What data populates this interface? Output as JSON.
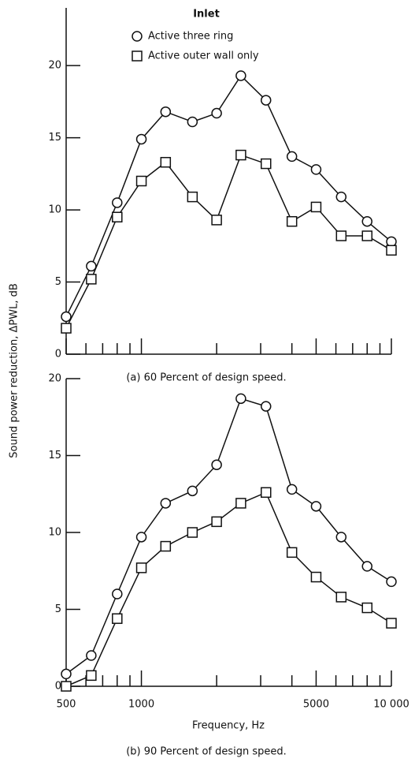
{
  "chart_data": [
    {
      "type": "line",
      "title": "(a) 60 Percent of design speed.",
      "y_label": "Sound power reduction, ΔPWL, dB",
      "legend_title": "Inlet",
      "legend": "top-center",
      "x": [
        500,
        630,
        800,
        1000,
        1250,
        1600,
        2000,
        2500,
        3150,
        4000,
        5000,
        6300,
        8000,
        10000
      ],
      "series": [
        {
          "name": "Active three ring",
          "marker": "circle",
          "color": "#111111",
          "values": [
            2.6,
            6.1,
            10.5,
            14.9,
            16.8,
            16.1,
            16.7,
            19.3,
            17.6,
            13.7,
            12.8,
            10.9,
            9.2,
            7.8
          ]
        },
        {
          "name": "Active outer wall only",
          "marker": "square",
          "color": "#111111",
          "values": [
            1.8,
            5.2,
            9.5,
            12.0,
            13.3,
            10.9,
            9.3,
            13.8,
            13.2,
            9.2,
            10.2,
            8.2,
            8.2,
            7.2
          ]
        }
      ],
      "xlim": [
        500,
        10000
      ],
      "xscale": "log",
      "ylim": [
        0,
        24
      ],
      "yticks": [
        0,
        5,
        10,
        15,
        20
      ],
      "xticks": [
        500,
        1000,
        5000,
        10000
      ],
      "xminorticks": [
        600,
        700,
        800,
        900,
        2000,
        3000,
        4000,
        6000,
        7000,
        8000,
        9000
      ]
    },
    {
      "type": "line",
      "title": "(b) 90 Percent of design speed.",
      "x_label": "Frequency, Hz",
      "x": [
        500,
        630,
        800,
        1000,
        1250,
        1600,
        2000,
        2500,
        3150,
        4000,
        5000,
        6300,
        8000,
        10000
      ],
      "series": [
        {
          "marker": "circle",
          "color": "#111111",
          "values": [
            0.8,
            2.0,
            6.0,
            9.7,
            11.9,
            12.7,
            14.4,
            18.7,
            18.2,
            12.8,
            11.7,
            9.7,
            7.8,
            6.8
          ]
        },
        {
          "marker": "square",
          "color": "#111111",
          "values": [
            0,
            0.7,
            4.4,
            7.7,
            9.1,
            10.0,
            10.7,
            11.9,
            12.6,
            8.7,
            7.1,
            5.8,
            5.1,
            4.1
          ]
        }
      ],
      "xlim": [
        500,
        10000
      ],
      "xscale": "log",
      "ylim": [
        0,
        20
      ],
      "yticks": [
        0,
        5,
        10,
        15,
        20
      ],
      "xticks": [
        500,
        1000,
        5000,
        {
          "value": 10000,
          "label": "10 000"
        }
      ],
      "xminorticks": [
        600,
        700,
        800,
        900,
        2000,
        3000,
        4000,
        6000,
        7000,
        8000,
        9000
      ]
    }
  ]
}
